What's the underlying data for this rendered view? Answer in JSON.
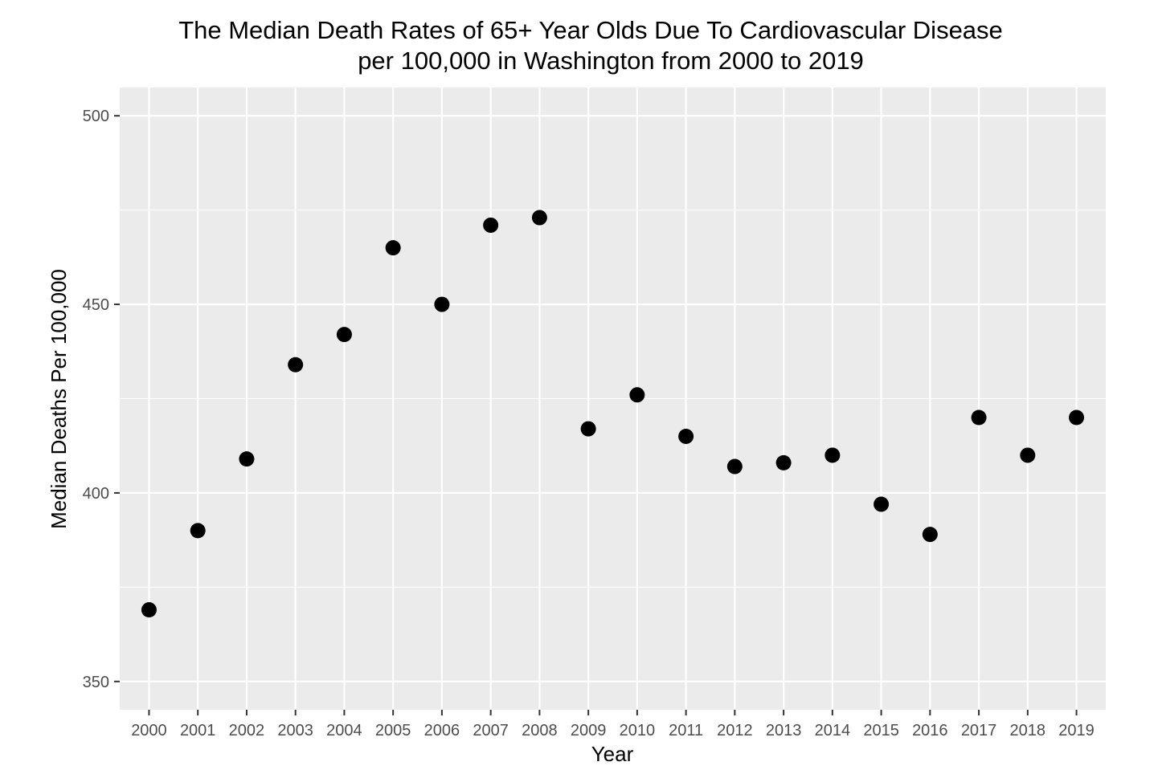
{
  "chart_data": {
    "type": "scatter",
    "title_lines": [
      "The Median Death Rates of 65+ Year Olds Due To Cardiovascular Disease",
      "per 100,000 in Washington from 2000 to 2019"
    ],
    "xlabel": "Year",
    "ylabel": "Median Deaths Per 100,000",
    "x": [
      "2000",
      "2001",
      "2002",
      "2003",
      "2004",
      "2005",
      "2006",
      "2007",
      "2008",
      "2009",
      "2010",
      "2011",
      "2012",
      "2013",
      "2014",
      "2015",
      "2016",
      "2017",
      "2018",
      "2019"
    ],
    "y": [
      369,
      390,
      409,
      434,
      442,
      465,
      450,
      471,
      473,
      417,
      426,
      415,
      407,
      408,
      410,
      397,
      389,
      420,
      410,
      420
    ],
    "ylim": [
      342.5,
      507.5
    ],
    "yticks": [
      350,
      400,
      450,
      500
    ],
    "ytick_labels": [
      "350",
      "400",
      "450",
      "500"
    ],
    "grid": true,
    "colors": {
      "panel_background": "#ebebeb",
      "grid": "#ffffff",
      "point": "#000000",
      "tick_text": "#4d4d4d",
      "tick_mark": "#333333"
    }
  }
}
